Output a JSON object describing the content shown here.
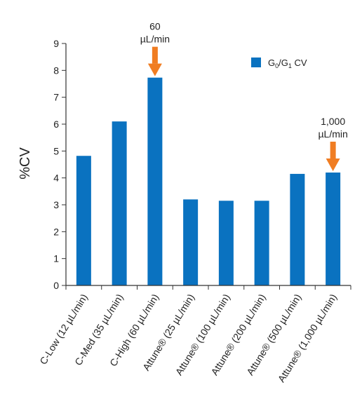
{
  "chart_data": {
    "type": "bar",
    "categories": [
      "C-Low (12 µL/min)",
      "C-Med (35 µL/min)",
      "C-High (60 µL/min)",
      "Attune® (25 µL/min)",
      "Attune® (100 µL/min)",
      "Attune® (200 µL/min)",
      "Attune® (500 µL/min)",
      "Attune® (1,000 µL/min)"
    ],
    "series": [
      {
        "name": "G0/G1 CV",
        "values": [
          4.82,
          6.1,
          7.73,
          3.2,
          3.15,
          3.15,
          4.15,
          4.2
        ]
      }
    ],
    "ylabel": "%CV",
    "ylim": [
      0,
      9
    ],
    "yticks": [
      0,
      1,
      2,
      3,
      4,
      5,
      6,
      7,
      8,
      9
    ],
    "grid": false,
    "legend": {
      "position": "top-right",
      "label_main": "G",
      "label_sub1": "0",
      "label_sep": "/G",
      "label_sub2": "1",
      "label_tail": " CV"
    },
    "annotations": [
      {
        "category_index": 2,
        "line1": "60",
        "line2": "µL/min"
      },
      {
        "category_index": 7,
        "line1": "1,000",
        "line2": "µL/min"
      }
    ]
  },
  "colors": {
    "bar": "#0a72c0",
    "arrow": "#f07d22",
    "axis": "#333333"
  }
}
